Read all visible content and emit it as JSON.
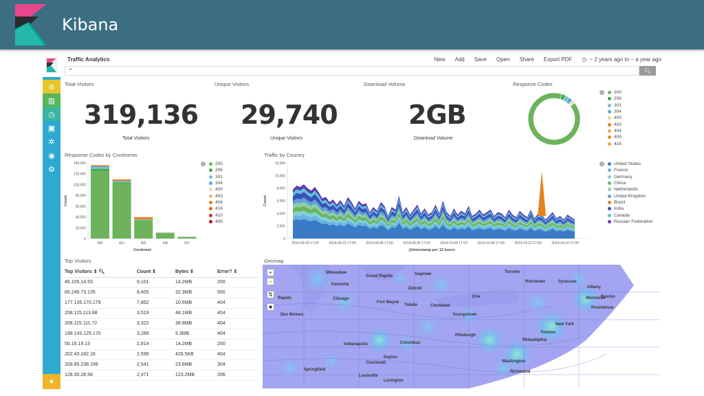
{
  "app": {
    "title": "Kibana"
  },
  "dashboard": {
    "title": "Traffic Analytics"
  },
  "toolbar": {
    "new": "New",
    "add": "Add",
    "save": "Save",
    "open": "Open",
    "share": "Share",
    "export": "Export PDF",
    "time": "~ 2 years ago to ~ a year ago"
  },
  "query": {
    "value": "*"
  },
  "metrics": [
    {
      "panel": "Total Visitors",
      "value": "319,136",
      "label": "Total Visitors"
    },
    {
      "panel": "Unique Visitors",
      "value": "29,740",
      "label": "Unique Visitors"
    },
    {
      "panel": "Download Volume",
      "value": "2GB",
      "label": "Download Volume"
    }
  ],
  "response_codes": {
    "title": "Response Codes",
    "legend": [
      {
        "label": "200",
        "color": "#6db35c"
      },
      {
        "label": "206",
        "color": "#3fa54c"
      },
      {
        "label": "301",
        "color": "#6ac3d4"
      },
      {
        "label": "304",
        "color": "#58a5dd"
      },
      {
        "label": "400",
        "color": "#e8d48b"
      },
      {
        "label": "403",
        "color": "#e6821e"
      },
      {
        "label": "404",
        "color": "#f1a45a"
      },
      {
        "label": "405",
        "color": "#e98b32"
      },
      {
        "label": "416",
        "color": "#f3a23e"
      }
    ]
  },
  "continents": {
    "title": "Response Codes by Continents",
    "xlabel": "Continent",
    "ylabel": "Count",
    "legend": [
      {
        "label": "200",
        "color": "#6db35c"
      },
      {
        "label": "206",
        "color": "#3fa54c"
      },
      {
        "label": "301",
        "color": "#6ac3d4"
      },
      {
        "label": "304",
        "color": "#58a5dd"
      },
      {
        "label": "400",
        "color": "#eddfb6"
      },
      {
        "label": "403",
        "color": "#f2b07a"
      },
      {
        "label": "404",
        "color": "#e6821e"
      },
      {
        "label": "416",
        "color": "#e2631e"
      },
      {
        "label": "410",
        "color": "#d43020"
      },
      {
        "label": "405",
        "color": "#a81b12"
      }
    ]
  },
  "country": {
    "title": "Traffic by Country",
    "xlabel": "@timestamp per 12 hours",
    "ylabel": "Count",
    "legend": [
      {
        "label": "United States",
        "color": "#3a7bc8"
      },
      {
        "label": "France",
        "color": "#6ab3e0"
      },
      {
        "label": "Germany",
        "color": "#7fd0d6"
      },
      {
        "label": "China",
        "color": "#6db35c"
      },
      {
        "label": "Netherlands",
        "color": "#8fcfa5"
      },
      {
        "label": "United Kingdom",
        "color": "#61a0d4"
      },
      {
        "label": "Brazil",
        "color": "#e6821e"
      },
      {
        "label": "India",
        "color": "#3a50b8"
      },
      {
        "label": "Canada",
        "color": "#5fc0e0"
      },
      {
        "label": "Russian Federation",
        "color": "#5a3fb0"
      }
    ]
  },
  "top_visitors": {
    "title": "Top Visitors",
    "headers": [
      "Top Visitors",
      "Count",
      "Bytes",
      "Error?"
    ],
    "rows": [
      [
        "46.105.14.53",
        "9,101",
        "14.2MB",
        "200"
      ],
      [
        "66.249.73.135",
        "8,405",
        "32.3MB",
        "500"
      ],
      [
        "177.135.170.179",
        "7,862",
        "10.6MB",
        "404"
      ],
      [
        "208.115.113.88",
        "3,519",
        "48.1MB",
        "404"
      ],
      [
        "208.115.111.72",
        "3,322",
        "38.8MB",
        "404"
      ],
      [
        "198.143.129.170",
        "3,288",
        "9.3MB",
        "404"
      ],
      [
        "50.16.19.13",
        "2,814",
        "14.2MB",
        "200"
      ],
      [
        "202.43.182.16",
        "2,599",
        "426.5KB",
        "404"
      ],
      [
        "209.85.238.199",
        "2,541",
        "23.6MB",
        "304"
      ],
      [
        "128.30.28.58",
        "2,471",
        "123.2MB",
        "206"
      ]
    ]
  },
  "geomap": {
    "title": "Geomap",
    "cities": [
      "Milwaukee",
      "Grand Rapids",
      "Saginaw",
      "Toronto",
      "Kenosha",
      "Detroit",
      "Syracuse",
      "Albany",
      "Chicago",
      "Fort Wayne",
      "Toledo",
      "Cleveland",
      "Erie",
      "Worcester",
      "Boston",
      "Providence",
      "Des Moines",
      "Youngstown",
      "New York",
      "Indianapolis",
      "Columbus",
      "Pittsburgh",
      "Philadelphia",
      "Washington",
      "Richmond",
      "Louisville",
      "Lexington",
      "Dayton",
      "Cincinnati",
      "Springfield",
      "Trenton",
      "Rochester",
      "Rapids"
    ]
  },
  "chart_data": [
    {
      "type": "pie",
      "title": "Response Codes",
      "categories": [
        "200",
        "206",
        "301",
        "304",
        "400",
        "403",
        "404",
        "405",
        "416"
      ],
      "values": [
        90.5,
        2.5,
        2.5,
        2.5,
        0.3,
        0.5,
        0.6,
        0.3,
        0.3
      ]
    },
    {
      "type": "bar",
      "title": "Response Codes by Continents",
      "xlabel": "Continent",
      "ylabel": "Count",
      "categories": [
        "NA",
        "EU",
        "AS",
        "SA",
        "OC"
      ],
      "ylim": [
        0,
        140000
      ],
      "yticks": [
        "0",
        "20,000",
        "40,000",
        "60,000",
        "80,000",
        "100,000",
        "120,000",
        "140,000"
      ],
      "series": [
        {
          "name": "200",
          "values": [
            126000,
            102000,
            34000,
            10000,
            3000
          ]
        },
        {
          "name": "206",
          "values": [
            3000,
            2000,
            800,
            300,
            100
          ]
        },
        {
          "name": "301",
          "values": [
            3000,
            1500,
            500,
            300,
            100
          ]
        },
        {
          "name": "304",
          "values": [
            2000,
            1000,
            500,
            300,
            100
          ]
        },
        {
          "name": "404",
          "values": [
            2000,
            3000,
            4000,
            300,
            100
          ]
        }
      ]
    },
    {
      "type": "area",
      "title": "Traffic by Country",
      "xlabel": "@timestamp per 12 hours",
      "ylabel": "Count",
      "ylim": [
        0,
        12000
      ],
      "yticks": [
        "0",
        "2,000",
        "4,000",
        "6,000",
        "8,000",
        "10,000",
        "12,000"
      ],
      "xticks": [
        "2014-09-18 17:00",
        "2014-09-22 17:00",
        "2014-09-26 17:00",
        "2014-09-30 17:00",
        "2014-10-04 17:00",
        "2014-10-08 17:00",
        "2014-10-12 17:00",
        "2014-10-16 17:00"
      ],
      "total": [
        7800,
        8400,
        8200,
        8600,
        8000,
        7600,
        8200,
        7400,
        6400,
        6600,
        5800,
        6200,
        5400,
        6100,
        5200,
        6600,
        5800,
        4800,
        6000,
        5400,
        5600,
        4200,
        5000,
        4400,
        5800,
        5200,
        3600,
        5000,
        4600,
        6800,
        4200,
        5000,
        3800,
        4600,
        5400,
        4000,
        4800,
        3800,
        4200,
        5400,
        4000,
        6000,
        4200,
        3600,
        4800,
        3800,
        4400,
        4000,
        5200,
        3600,
        4000,
        4600,
        3800,
        4200,
        4600,
        3600,
        4200,
        4000,
        3400,
        4600,
        3800,
        3400,
        4400,
        3800,
        3400,
        4600,
        3200,
        4000,
        3800,
        3000,
        3600,
        4200,
        3200,
        3600,
        3000,
        3800,
        3400,
        3000
      ],
      "spike": {
        "x": "2014-10-12 05:00",
        "value": 10700,
        "series": "Brazil"
      }
    }
  ]
}
